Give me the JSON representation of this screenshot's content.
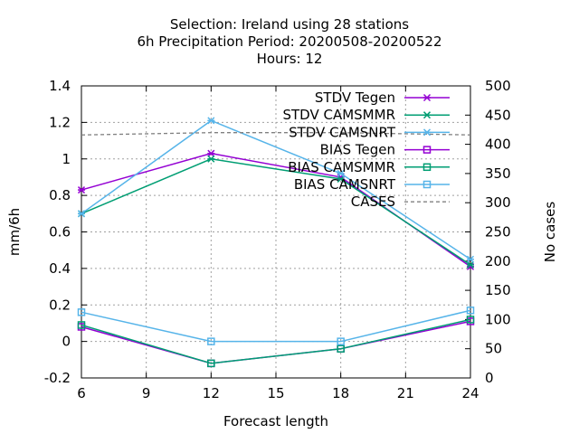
{
  "chart_data": {
    "type": "line",
    "title_lines": [
      "Selection: Ireland using    28 stations",
      "6h Precipitation   Period: 20200508-20200522",
      "Hours:  12"
    ],
    "xlabel": "Forecast length",
    "ylabel": "mm/6h",
    "y2label": "No cases",
    "x": [
      6,
      12,
      18,
      24
    ],
    "xticks": [
      6,
      9,
      12,
      15,
      18,
      21,
      24
    ],
    "xlim": [
      6,
      24
    ],
    "ylim": [
      -0.2,
      1.4
    ],
    "yticks": [
      -0.2,
      0,
      0.2,
      0.4,
      0.6,
      0.8,
      1,
      1.2,
      1.4
    ],
    "ytick_labels": [
      "-0.2",
      "0",
      "0.2",
      "0.4",
      "0.6",
      "0.8",
      "1",
      "1.2",
      "1.4"
    ],
    "y2lim": [
      0,
      500
    ],
    "y2ticks": [
      0,
      50,
      100,
      150,
      200,
      250,
      300,
      350,
      400,
      450,
      500
    ],
    "grid": true,
    "legend_position": "top-right",
    "series": [
      {
        "name": "STDV Tegen",
        "axis": "y1",
        "marker": "x-star",
        "color": "#9400d3",
        "values": [
          0.83,
          1.03,
          0.9,
          0.41
        ]
      },
      {
        "name": "STDV CAMSMMR",
        "axis": "y1",
        "marker": "x-star",
        "color": "#009e73",
        "values": [
          0.7,
          1.0,
          0.89,
          0.42
        ]
      },
      {
        "name": "STDV CAMSNRT",
        "axis": "y1",
        "marker": "x-star",
        "color": "#56b4e9",
        "values": [
          0.7,
          1.21,
          0.92,
          0.45
        ]
      },
      {
        "name": "BIAS Tegen",
        "axis": "y1",
        "marker": "square",
        "color": "#9400d3",
        "values": [
          0.08,
          -0.12,
          -0.04,
          0.11
        ]
      },
      {
        "name": "BIAS CAMSMMR",
        "axis": "y1",
        "marker": "square",
        "color": "#009e73",
        "values": [
          0.09,
          -0.12,
          -0.04,
          0.12
        ]
      },
      {
        "name": "BIAS CAMSNRT",
        "axis": "y1",
        "marker": "square",
        "color": "#56b4e9",
        "values": [
          0.16,
          0.0,
          0.0,
          0.17
        ]
      },
      {
        "name": "CASES",
        "axis": "y2",
        "marker": "none",
        "color": "#808080",
        "dashed": true,
        "values": [
          416,
          420,
          420,
          416
        ]
      }
    ]
  }
}
